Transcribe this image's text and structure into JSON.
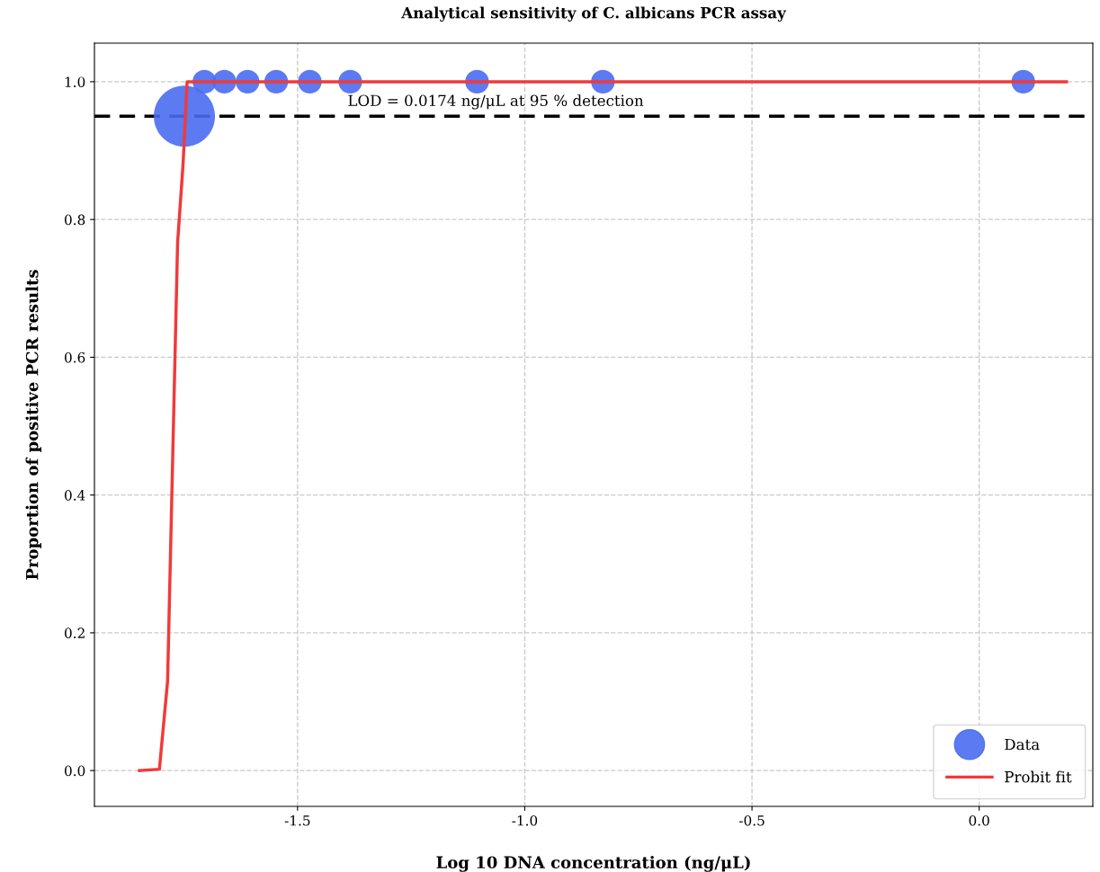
{
  "chart_data": {
    "type": "bubble",
    "title": "Analytical sensitivity of C. albicans PCR assay",
    "xlabel": "Log 10 DNA concentration (ng/μL)",
    "ylabel": "Proportion of positive PCR results",
    "series": [
      {
        "name": "Data",
        "color": "#4a6cf0",
        "x": [
          -1.749,
          -1.705,
          -1.661,
          -1.61,
          -1.547,
          -1.473,
          -1.384,
          -1.105,
          -0.828,
          0.097
        ],
        "values": [
          0.95,
          1.0,
          1.0,
          1.0,
          1.0,
          1.0,
          1.0,
          1.0,
          1.0,
          1.0
        ],
        "sizes": [
          1,
          0.15,
          0.15,
          0.15,
          0.15,
          0.15,
          0.15,
          0.15,
          0.15,
          0.15
        ]
      },
      {
        "name": "Probit fit",
        "type": "line",
        "color": "#f03a3a",
        "x": [
          -1.848,
          -1.804,
          -1.786,
          -1.764,
          -1.752,
          -1.743,
          -1.72,
          0.192
        ],
        "values": [
          0.0,
          0.002,
          0.13,
          0.766,
          0.88,
          1.0,
          1.0,
          1.0
        ]
      }
    ],
    "ref_lines": [
      {
        "axis": "y",
        "value": 0.95,
        "label": "LOD = 0.0174 ng/μL at 95 % detection",
        "color": "#000000",
        "line_style": "dashed"
      }
    ],
    "xlim": [
      -1.947,
      0.25
    ],
    "ylim": [
      -0.052,
      1.056
    ],
    "xticks": [
      {
        "value": -1.5,
        "label": "-1.5"
      },
      {
        "value": -1.0,
        "label": "-1.0"
      },
      {
        "value": -0.5,
        "label": "-0.5"
      },
      {
        "value": 0.0,
        "label": "0.0"
      }
    ],
    "yticks": [
      {
        "value": 0.0,
        "label": "0.0"
      },
      {
        "value": 0.2,
        "label": "0.2"
      },
      {
        "value": 0.4,
        "label": "0.4"
      },
      {
        "value": 0.6,
        "label": "0.6"
      },
      {
        "value": 0.8,
        "label": "0.8"
      },
      {
        "value": 1.0,
        "label": "1.0"
      }
    ],
    "grid": true,
    "legend": "bottom right"
  }
}
